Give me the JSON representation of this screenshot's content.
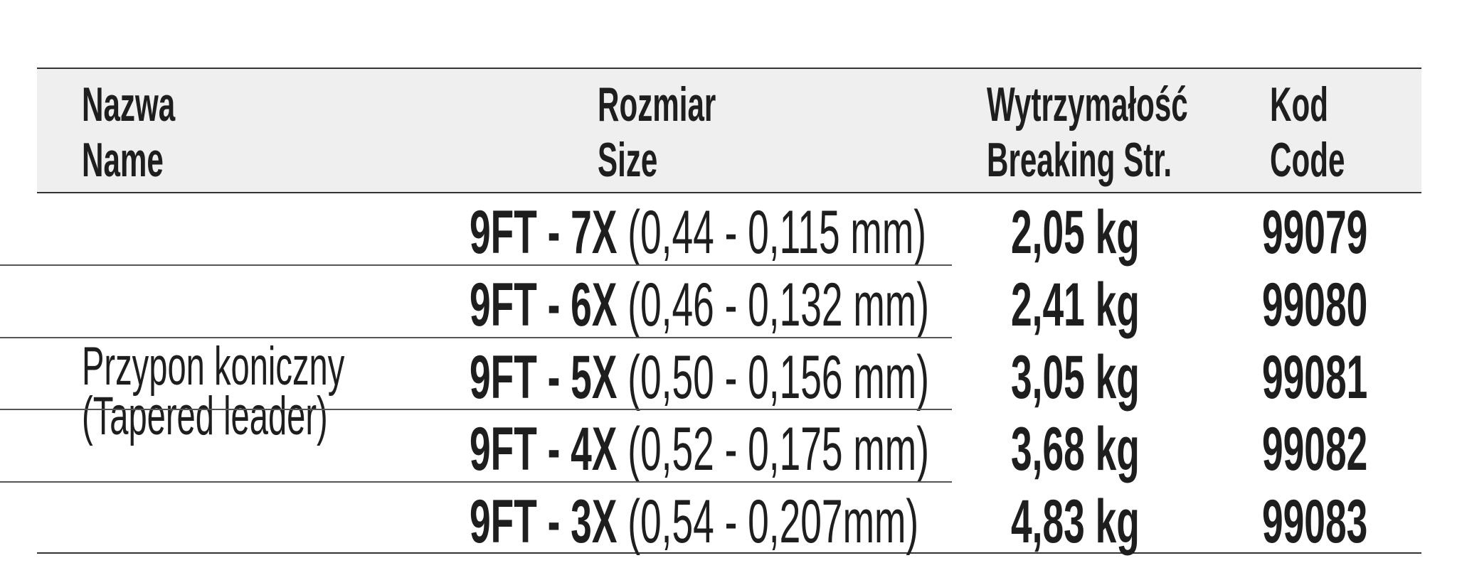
{
  "table": {
    "header": [
      [
        "Nazwa",
        "Name"
      ],
      [
        "Rozmiar",
        "Size"
      ],
      [
        "Wytrzymałość",
        "Breaking Str."
      ],
      [
        "Kod",
        "Code"
      ]
    ],
    "name": [
      "Przypon koniczny",
      "(Tapered leader)"
    ],
    "rows": [
      [
        "9FT - 7X",
        "(0,44 - 0,115 mm)",
        "2,05 kg",
        "99079"
      ],
      [
        "9FT - 6X",
        "(0,46 - 0,132 mm)",
        "2,41 kg",
        "99080"
      ],
      [
        "9FT - 5X",
        "(0,50 - 0,156 mm)",
        "3,05 kg",
        "99081"
      ],
      [
        "9FT - 4X",
        "(0,52 - 0,175 mm)",
        "3,68 kg",
        "99082"
      ],
      [
        "9FT - 3X",
        "(0,54 - 0,207mm)",
        "4,83 kg",
        "99083"
      ]
    ]
  }
}
